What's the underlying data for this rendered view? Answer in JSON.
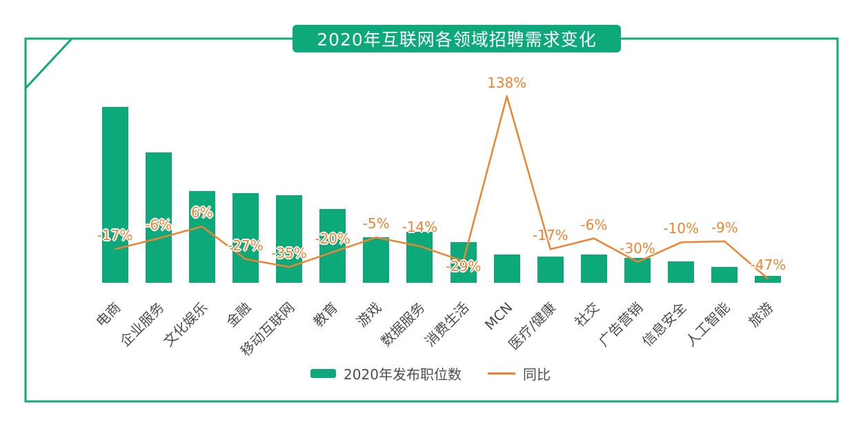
{
  "title": "2020年互联网各领域招聘需求变化",
  "colors": {
    "green": "#0ea97a",
    "orange": "#ef8332",
    "labelgray": "#4d4d4d"
  },
  "legend": {
    "bars": "2020年发布职位数",
    "line": "同比"
  },
  "chart_data": {
    "type": "bar",
    "subtype": "bar-with-line-overlay",
    "title": "2020年互联网各领域招聘需求变化",
    "categories": [
      "电商",
      "企业服务",
      "文化娱乐",
      "金融",
      "移动互联网",
      "教育",
      "游戏",
      "数据服务",
      "消费生活",
      "MCN",
      "医疗/健康",
      "社交",
      "广告营销",
      "信息安全",
      "人工智能",
      "旅游"
    ],
    "series": [
      {
        "name": "2020年发布职位数",
        "type": "bar",
        "values_note": "no numeric axis shown; values are a relative index, tallest bar = 100",
        "values": [
          100,
          74,
          52,
          51,
          50,
          42,
          26,
          29,
          23,
          16,
          15,
          16,
          14,
          12,
          9,
          4
        ]
      },
      {
        "name": "同比",
        "type": "line",
        "unit": "%",
        "values": [
          -17,
          -6,
          6,
          -27,
          -35,
          -20,
          -5,
          -14,
          -29,
          138,
          -17,
          -6,
          -30,
          -10,
          -9,
          -47
        ],
        "labels": [
          "-17%",
          "-6%",
          "6%",
          "-27%",
          "-35%",
          "-20%",
          "-5%",
          "-14%",
          "-29%",
          "138%",
          "-17%",
          "-6%",
          "-30%",
          "-10%",
          "-9%",
          "-47%"
        ]
      }
    ],
    "legend_position": "bottom",
    "grid": false,
    "value_axis_visible": false,
    "line_label_range": [
      -47,
      138
    ]
  }
}
